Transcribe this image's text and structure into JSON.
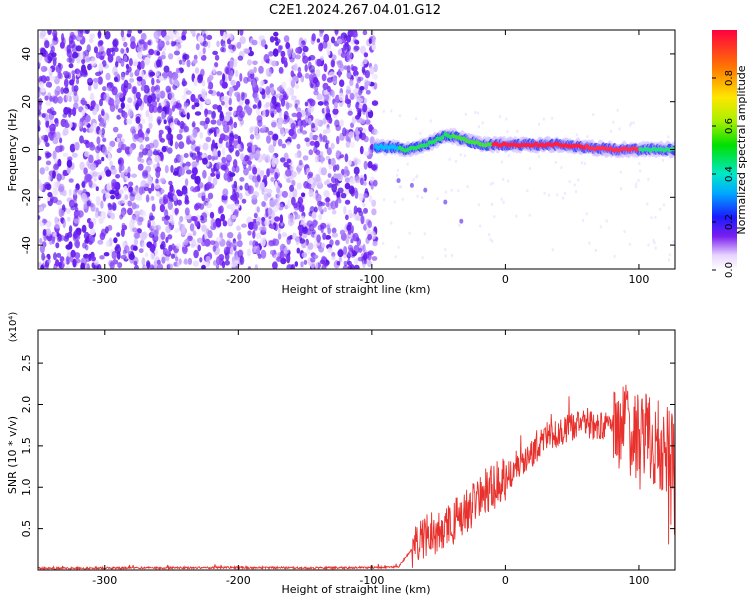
{
  "title": "C2E1.2024.267.04.01.G12",
  "chart_data": [
    {
      "type": "heatmap",
      "title": "C2E1.2024.267.04.01.G12",
      "xlabel": "Height of straight line (km)",
      "ylabel": "Frequency (Hz)",
      "xlim": [
        -350,
        127
      ],
      "ylim": [
        -50,
        50
      ],
      "xticks": [
        -300,
        -200,
        -100,
        0,
        100
      ],
      "yticks": [
        -40,
        -20,
        0,
        20,
        40
      ],
      "noise_region_x": [
        -350,
        -97
      ],
      "signal_track": [
        {
          "x": -97,
          "y": 1
        },
        {
          "x": -85,
          "y": 1
        },
        {
          "x": -75,
          "y": 0
        },
        {
          "x": -65,
          "y": 1
        },
        {
          "x": -55,
          "y": 3
        },
        {
          "x": -45,
          "y": 6
        },
        {
          "x": -35,
          "y": 5
        },
        {
          "x": -25,
          "y": 3
        },
        {
          "x": -15,
          "y": 2
        },
        {
          "x": 0,
          "y": 2
        },
        {
          "x": 20,
          "y": 2
        },
        {
          "x": 40,
          "y": 2
        },
        {
          "x": 60,
          "y": 1
        },
        {
          "x": 80,
          "y": 0
        },
        {
          "x": 100,
          "y": 0
        },
        {
          "x": 127,
          "y": 0
        }
      ],
      "colorbar": {
        "label": "Normalized spectral amplitude",
        "ticks": [
          "0.0",
          "0.2",
          "0.4",
          "0.6",
          "0.8"
        ],
        "range": [
          0,
          1
        ]
      },
      "grid": false
    },
    {
      "type": "line",
      "xlabel": "Height of straight line (km)",
      "ylabel": "SNR (10 * v/v)",
      "multiplier": "(x10⁴)",
      "color": "#e8302c",
      "xlim": [
        -350,
        127
      ],
      "ylim": [
        0,
        2.9
      ],
      "xticks": [
        -300,
        -200,
        -100,
        0,
        100
      ],
      "yticks": [
        "0.5",
        "1.0",
        "1.5",
        "2.0",
        "2.5"
      ],
      "envelope": {
        "x": [
          -350,
          -280,
          -200,
          -150,
          -100,
          -80,
          -70,
          -60,
          -50,
          -40,
          -30,
          -20,
          -10,
          0,
          10,
          20,
          30,
          40,
          50,
          60,
          70,
          80,
          90,
          100,
          110,
          120,
          127
        ],
        "y": [
          0.02,
          0.025,
          0.03,
          0.025,
          0.03,
          0.04,
          0.25,
          0.4,
          0.45,
          0.55,
          0.7,
          0.85,
          1.0,
          1.1,
          1.25,
          1.4,
          1.6,
          1.68,
          1.72,
          1.75,
          1.75,
          1.72,
          1.7,
          1.65,
          1.55,
          1.45,
          1.4
        ]
      },
      "grid": false
    }
  ]
}
